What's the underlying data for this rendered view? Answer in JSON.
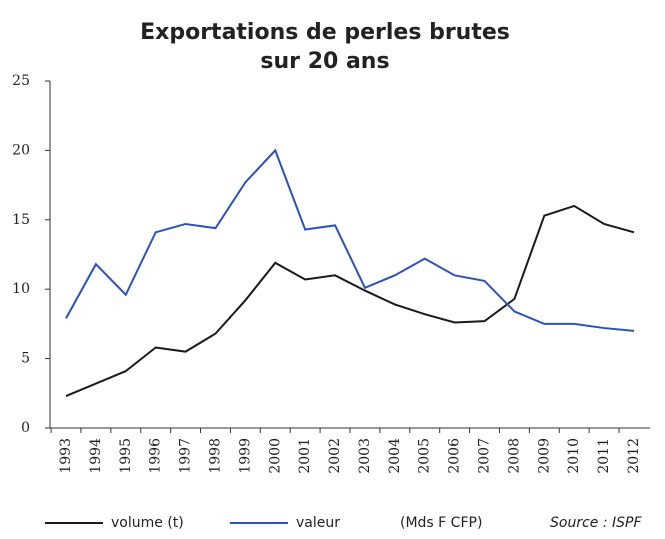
{
  "chart_data": {
    "type": "line",
    "title": [
      "Exportations de perles brutes",
      "sur 20 ans"
    ],
    "categories": [
      "1993",
      "1994",
      "1995",
      "1996",
      "1997",
      "1998",
      "1999",
      "2000",
      "2001",
      "2002",
      "2003",
      "2004",
      "2005",
      "2006",
      "2007",
      "2008",
      "2009",
      "2010",
      "2011",
      "2012"
    ],
    "series": [
      {
        "name": "volume (t)",
        "color": "#1a1a1a",
        "values": [
          2.3,
          3.2,
          4.1,
          5.8,
          5.5,
          6.8,
          9.2,
          11.9,
          10.7,
          11.0,
          9.9,
          8.9,
          8.2,
          7.6,
          7.7,
          9.3,
          15.3,
          16.0,
          14.7,
          14.1
        ]
      },
      {
        "name": "valeur",
        "color": "#2a52be",
        "values": [
          7.9,
          11.8,
          9.6,
          14.1,
          14.7,
          14.4,
          17.7,
          20.0,
          14.3,
          14.6,
          10.1,
          11.0,
          12.2,
          11.0,
          10.6,
          8.4,
          7.5,
          7.5,
          7.2,
          7.0
        ]
      }
    ],
    "legend_note": "(Mds F CFP)",
    "source": "Source : ISPF",
    "ylim": [
      0,
      25
    ],
    "yticks": [
      0,
      5,
      10,
      15,
      20,
      25
    ],
    "grid": false
  }
}
